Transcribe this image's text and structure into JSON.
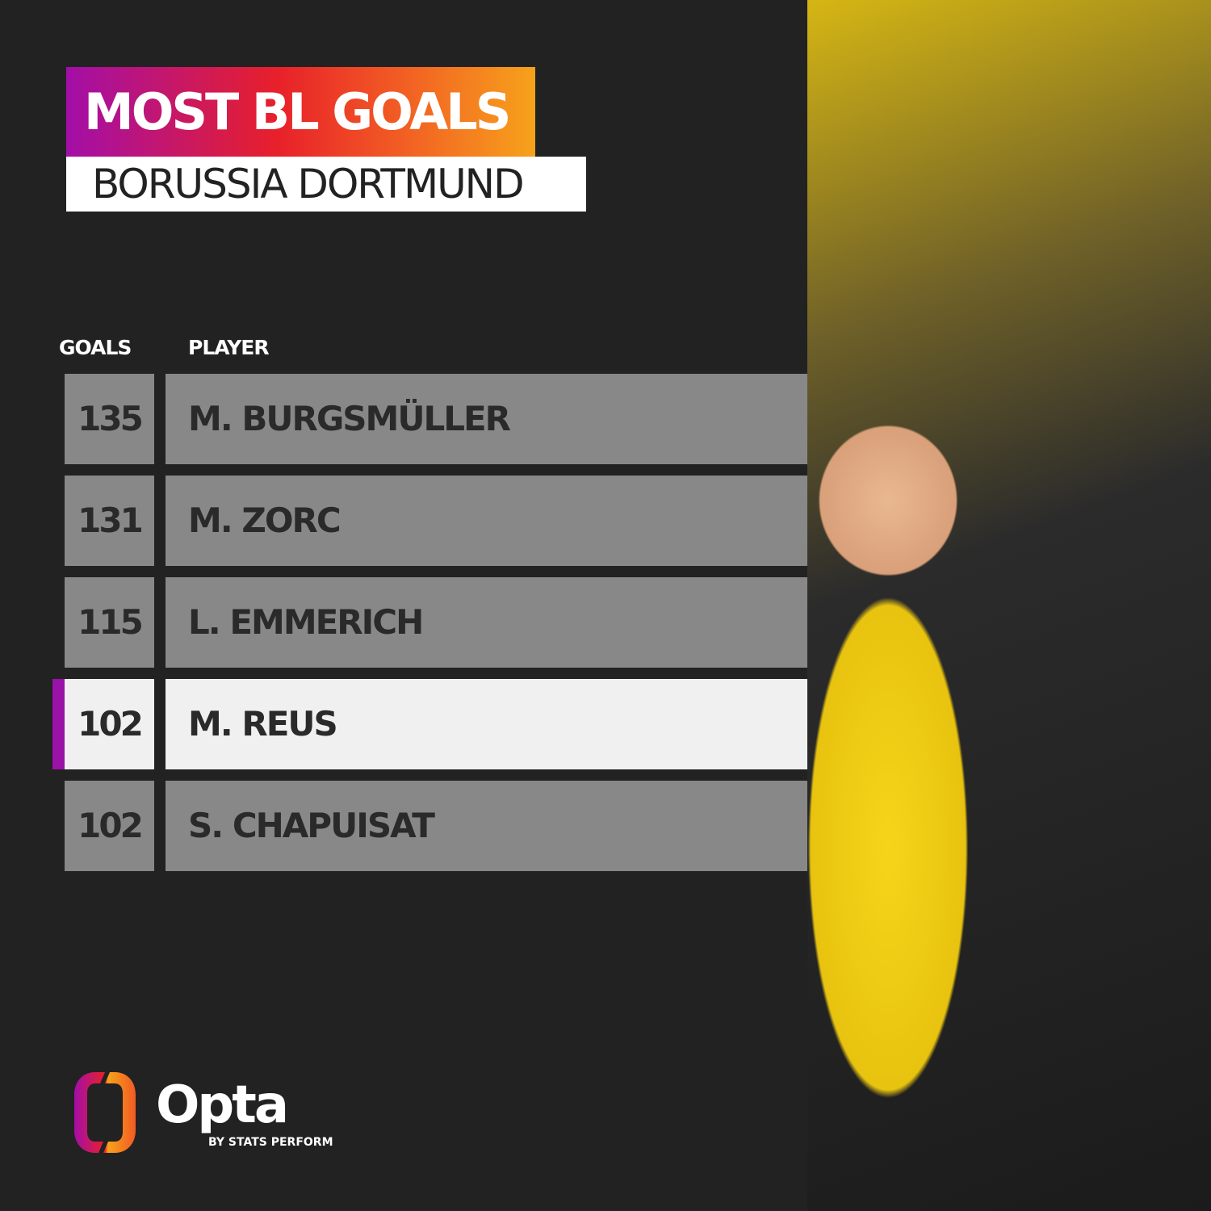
{
  "header": {
    "title": "MOST BL GOALS",
    "subtitle": "BORUSSIA DORTMUND"
  },
  "chart_data": {
    "type": "table",
    "columns": [
      "GOALS",
      "PLAYER"
    ],
    "rows": [
      {
        "goals": "135",
        "player": "M. BURGSMÜLLER",
        "highlighted": false
      },
      {
        "goals": "131",
        "player": "M. ZORC",
        "highlighted": false
      },
      {
        "goals": "115",
        "player": "L. EMMERICH",
        "highlighted": false
      },
      {
        "goals": "102",
        "player": "M. REUS",
        "highlighted": true
      },
      {
        "goals": "102",
        "player": "S. CHAPUISAT",
        "highlighted": false
      }
    ]
  },
  "colors": {
    "background": "#222222",
    "row": "#888888",
    "highlight_row": "#f0f0f0",
    "highlight_marker": "#9b12a8",
    "gradient_start": "#a30ea8",
    "gradient_end": "#f7a21b"
  },
  "footer": {
    "brand": "Opta",
    "tagline": "BY STATS PERFORM"
  }
}
